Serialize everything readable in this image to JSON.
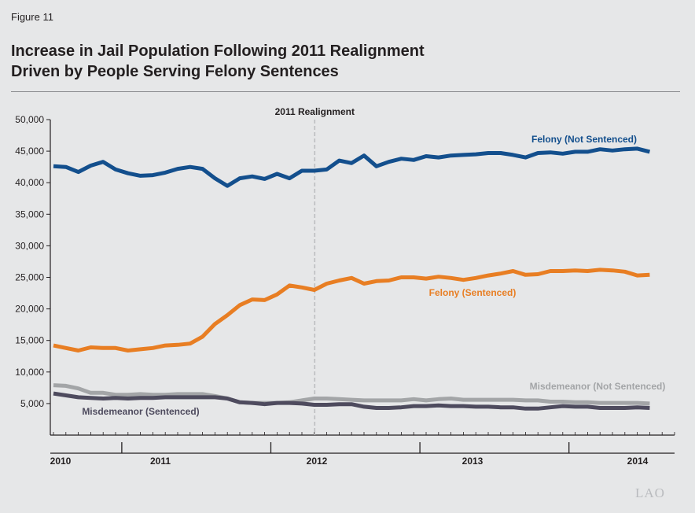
{
  "figure_label": "Figure 11",
  "title_line1": "Increase in Jail Population Following 2011 Realignment",
  "title_line2": "Driven by People Serving Felony Sentences",
  "logo": "LAO",
  "colors": {
    "felony_not_sentenced": "#134f8d",
    "felony_sentenced": "#e87e23",
    "misdemeanor_not_sentenced": "#a3a5a7",
    "misdemeanor_sentenced": "#4e4b5e",
    "realignment_line": "#bcbec0",
    "axis": "#231f20"
  },
  "chart_data": {
    "type": "line",
    "x_unit": "month",
    "x_start": "2010-01",
    "x_end": "2014-03",
    "y_ticks": [
      5000,
      10000,
      15000,
      20000,
      25000,
      30000,
      35000,
      40000,
      45000,
      50000
    ],
    "y_tick_labels": [
      "5,000",
      "10,000",
      "15,000",
      "20,000",
      "25,000",
      "30,000",
      "35,000",
      "40,000",
      "45,000",
      "50,000"
    ],
    "ylim": [
      0,
      50000
    ],
    "grid": false,
    "year_labels": [
      "2010",
      "2011",
      "2012",
      "2013",
      "2014"
    ],
    "annotations": [
      {
        "text": "2011 Realignment",
        "x": "2011-10"
      }
    ],
    "series": [
      {
        "name": "Felony (Not Sentenced)",
        "color_key": "felony_not_sentenced",
        "values": [
          42600,
          42500,
          41700,
          42700,
          43300,
          42100,
          41500,
          41100,
          41200,
          41600,
          42200,
          42500,
          42200,
          40700,
          39500,
          40700,
          41000,
          40600,
          41400,
          40700,
          41900,
          41900,
          42100,
          43500,
          43100,
          44300,
          42600,
          43300,
          43800,
          43600,
          44200,
          44000,
          44300,
          44400,
          44500,
          44700,
          44700,
          44400,
          44000,
          44700,
          44800,
          44600,
          44900,
          44900,
          45300,
          45100,
          45300,
          45400,
          44900
        ]
      },
      {
        "name": "Felony (Sentenced)",
        "color_key": "felony_sentenced",
        "values": [
          14200,
          13800,
          13400,
          13900,
          13800,
          13800,
          13400,
          13600,
          13800,
          14200,
          14300,
          14500,
          15600,
          17600,
          19000,
          20600,
          21500,
          21400,
          22300,
          23700,
          23400,
          23000,
          24000,
          24500,
          24900,
          24000,
          24400,
          24500,
          25000,
          25000,
          24800,
          25100,
          24900,
          24600,
          24900,
          25300,
          25600,
          26000,
          25400,
          25500,
          26000,
          26000,
          26100,
          26000,
          26200,
          26100,
          25900,
          25300,
          25400
        ]
      },
      {
        "name": "Misdemeanor (Not Sentenced)",
        "color_key": "misdemeanor_not_sentenced",
        "values": [
          7900,
          7800,
          7400,
          6700,
          6700,
          6400,
          6400,
          6500,
          6400,
          6400,
          6500,
          6500,
          6500,
          6200,
          5800,
          5200,
          5100,
          5100,
          5100,
          5200,
          5500,
          5800,
          5800,
          5700,
          5600,
          5500,
          5500,
          5500,
          5500,
          5700,
          5500,
          5700,
          5800,
          5600,
          5600,
          5600,
          5600,
          5600,
          5500,
          5500,
          5300,
          5300,
          5200,
          5200,
          5100,
          5100,
          5100,
          5100,
          5000
        ]
      },
      {
        "name": "Misdemeanor (Sentenced)",
        "color_key": "misdemeanor_sentenced",
        "values": [
          6600,
          6300,
          6000,
          5900,
          5800,
          5900,
          5800,
          5900,
          5900,
          6000,
          6000,
          6000,
          6000,
          6000,
          5800,
          5200,
          5100,
          4900,
          5100,
          5100,
          5000,
          4800,
          4800,
          4900,
          4900,
          4500,
          4300,
          4300,
          4400,
          4600,
          4600,
          4700,
          4600,
          4600,
          4500,
          4500,
          4400,
          4400,
          4200,
          4200,
          4400,
          4600,
          4500,
          4500,
          4300,
          4300,
          4300,
          4400,
          4300
        ]
      }
    ]
  }
}
